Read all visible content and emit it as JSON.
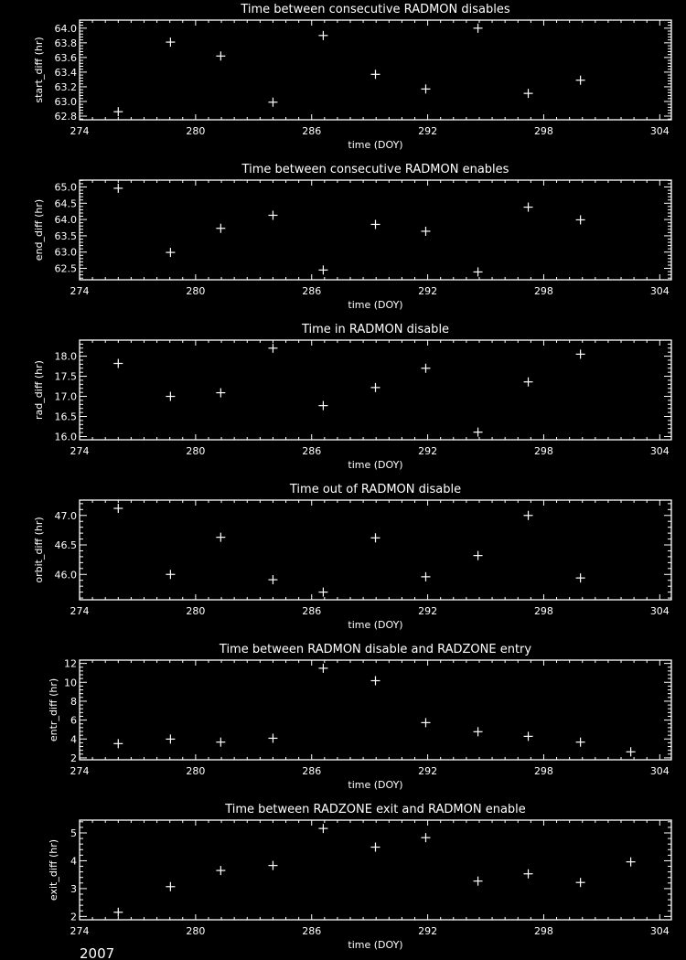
{
  "footer_year": "2007",
  "colors": {
    "background": "#000000",
    "foreground": "#ffffff"
  },
  "chart_data": [
    {
      "type": "scatter",
      "title": "Time between consecutive RADMON disables",
      "xlabel": "time (DOY)",
      "ylabel": "start_diff (hr)",
      "xlim": [
        274,
        304.6
      ],
      "ylim": [
        62.75,
        64.11
      ],
      "xticks": [
        274,
        280,
        286,
        292,
        298,
        304
      ],
      "yticks": [
        "62.8",
        "63.0",
        "63.2",
        "63.4",
        "63.6",
        "63.8",
        "64.0"
      ],
      "marker": "plus",
      "x": [
        276.0,
        278.7,
        281.3,
        284.0,
        286.6,
        289.3,
        291.9,
        294.6,
        297.2,
        299.9
      ],
      "y": [
        62.86,
        63.81,
        63.62,
        62.99,
        63.9,
        63.37,
        63.17,
        64.0,
        63.11,
        63.29
      ]
    },
    {
      "type": "scatter",
      "title": "Time between consecutive RADMON enables",
      "xlabel": "time (DOY)",
      "ylabel": "end_diff (hr)",
      "xlim": [
        274,
        304.6
      ],
      "ylim": [
        62.15,
        65.21
      ],
      "xticks": [
        274,
        280,
        286,
        292,
        298,
        304
      ],
      "yticks": [
        "62.5",
        "63.0",
        "63.5",
        "64.0",
        "64.5",
        "65.0"
      ],
      "marker": "plus",
      "x": [
        276.0,
        278.7,
        281.3,
        284.0,
        286.6,
        289.3,
        291.9,
        294.6,
        297.2,
        299.9
      ],
      "y": [
        64.96,
        62.99,
        63.73,
        64.13,
        62.45,
        63.85,
        63.64,
        62.39,
        64.38,
        63.99
      ]
    },
    {
      "type": "scatter",
      "title": "Time in RADMON disable",
      "xlabel": "time (DOY)",
      "ylabel": "rad_diff (hr)",
      "xlim": [
        274,
        304.6
      ],
      "ylim": [
        15.92,
        18.4
      ],
      "xticks": [
        274,
        280,
        286,
        292,
        298,
        304
      ],
      "yticks": [
        "16.0",
        "16.5",
        "17.0",
        "17.5",
        "18.0"
      ],
      "marker": "plus",
      "x": [
        276.0,
        278.7,
        281.3,
        284.0,
        286.6,
        289.3,
        291.9,
        294.6,
        297.2,
        299.9
      ],
      "y": [
        17.82,
        17.0,
        17.09,
        18.2,
        16.77,
        17.22,
        17.7,
        16.11,
        17.36,
        18.05
      ]
    },
    {
      "type": "scatter",
      "title": "Time out of RADMON disable",
      "xlabel": "time (DOY)",
      "ylabel": "orbit_diff (hr)",
      "xlim": [
        274,
        304.6
      ],
      "ylim": [
        45.57,
        47.26
      ],
      "xticks": [
        274,
        280,
        286,
        292,
        298,
        304
      ],
      "yticks": [
        "46.0",
        "46.5",
        "47.0"
      ],
      "marker": "plus",
      "x": [
        276.0,
        278.7,
        281.3,
        284.0,
        286.6,
        289.3,
        291.9,
        294.6,
        297.2,
        299.9
      ],
      "y": [
        47.12,
        46.0,
        46.63,
        45.91,
        45.7,
        46.62,
        45.96,
        46.32,
        47.0,
        45.94
      ]
    },
    {
      "type": "scatter",
      "title": "Time between RADMON disable and RADZONE entry",
      "xlabel": "time (DOY)",
      "ylabel": "entr_diff (hr)",
      "xlim": [
        274,
        304.6
      ],
      "ylim": [
        1.8,
        12.35
      ],
      "xticks": [
        274,
        280,
        286,
        292,
        298,
        304
      ],
      "yticks": [
        "2",
        "4",
        "6",
        "8",
        "10",
        "12"
      ],
      "marker": "plus",
      "x": [
        276.0,
        278.7,
        281.3,
        284.0,
        286.6,
        289.3,
        291.9,
        294.6,
        297.2,
        299.9,
        302.5
      ],
      "y": [
        3.51,
        3.99,
        3.67,
        4.08,
        11.49,
        10.17,
        5.73,
        4.77,
        4.28,
        3.67,
        2.64
      ]
    },
    {
      "type": "scatter",
      "title": "Time between RADZONE exit and RADMON enable",
      "xlabel": "time (DOY)",
      "ylabel": "exit_diff (hr)",
      "xlim": [
        274,
        304.6
      ],
      "ylim": [
        1.88,
        5.46
      ],
      "xticks": [
        274,
        280,
        286,
        292,
        298,
        304
      ],
      "yticks": [
        "2",
        "3",
        "4",
        "5"
      ],
      "marker": "plus",
      "x": [
        276.0,
        278.7,
        281.3,
        284.0,
        286.6,
        289.3,
        291.9,
        294.6,
        297.2,
        299.9,
        302.5
      ],
      "y": [
        2.15,
        3.07,
        3.65,
        3.83,
        5.16,
        4.49,
        4.83,
        3.27,
        3.53,
        3.22,
        3.96
      ]
    }
  ]
}
